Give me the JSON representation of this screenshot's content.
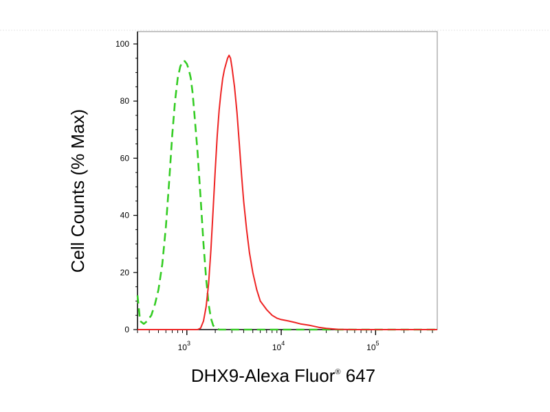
{
  "chart_data": {
    "type": "line",
    "xlabel": "DHX9-Alexa Fluor",
    "xlabel_sup": "®",
    "xlabel_suffix": " 647",
    "ylabel": "Cell Counts (% Max)",
    "x_scale": "log",
    "xlim": [
      300,
      450000
    ],
    "ylim": [
      0,
      100
    ],
    "y_ticks": [
      {
        "value": 0,
        "label": "0"
      },
      {
        "value": 20,
        "label": "20"
      },
      {
        "value": 40,
        "label": "40"
      },
      {
        "value": 60,
        "label": "60"
      },
      {
        "value": 80,
        "label": "80"
      },
      {
        "value": 100,
        "label": "100"
      }
    ],
    "x_major_ticks": [
      {
        "value": 1000,
        "base": "10",
        "exp": "3"
      },
      {
        "value": 10000,
        "base": "10",
        "exp": "4"
      },
      {
        "value": 100000,
        "base": "10",
        "exp": "5"
      }
    ],
    "grid": false,
    "series": [
      {
        "color": "#33cc22",
        "dash": "dashed",
        "points": [
          [
            300,
            12
          ],
          [
            320,
            3
          ],
          [
            350,
            2
          ],
          [
            380,
            3
          ],
          [
            420,
            5
          ],
          [
            460,
            9
          ],
          [
            500,
            14
          ],
          [
            550,
            23
          ],
          [
            600,
            36
          ],
          [
            650,
            52
          ],
          [
            700,
            68
          ],
          [
            750,
            80
          ],
          [
            800,
            88
          ],
          [
            850,
            92
          ],
          [
            900,
            94
          ],
          [
            950,
            94
          ],
          [
            1000,
            93
          ],
          [
            1050,
            91
          ],
          [
            1100,
            88
          ],
          [
            1150,
            83
          ],
          [
            1200,
            76
          ],
          [
            1300,
            62
          ],
          [
            1400,
            46
          ],
          [
            1500,
            30
          ],
          [
            1600,
            18
          ],
          [
            1700,
            9
          ],
          [
            1800,
            4
          ],
          [
            1900,
            1.5
          ],
          [
            2000,
            0.5
          ],
          [
            2200,
            0
          ],
          [
            450000,
            0
          ]
        ]
      },
      {
        "color": "#ee2222",
        "dash": "solid",
        "points": [
          [
            300,
            0
          ],
          [
            1300,
            0
          ],
          [
            1400,
            0.5
          ],
          [
            1500,
            3
          ],
          [
            1600,
            8
          ],
          [
            1700,
            16
          ],
          [
            1800,
            28
          ],
          [
            1900,
            42
          ],
          [
            2000,
            56
          ],
          [
            2100,
            68
          ],
          [
            2200,
            77
          ],
          [
            2300,
            83
          ],
          [
            2400,
            88
          ],
          [
            2500,
            91
          ],
          [
            2600,
            93
          ],
          [
            2700,
            95
          ],
          [
            2800,
            96
          ],
          [
            2900,
            95
          ],
          [
            3000,
            92
          ],
          [
            3200,
            85
          ],
          [
            3400,
            76
          ],
          [
            3600,
            65
          ],
          [
            3800,
            54
          ],
          [
            4000,
            45
          ],
          [
            4300,
            35
          ],
          [
            4600,
            27
          ],
          [
            5000,
            20
          ],
          [
            5500,
            14
          ],
          [
            6000,
            10
          ],
          [
            7000,
            7
          ],
          [
            8000,
            5
          ],
          [
            9000,
            4
          ],
          [
            10000,
            3.5
          ],
          [
            12000,
            3
          ],
          [
            14000,
            2.5
          ],
          [
            16000,
            2
          ],
          [
            20000,
            1.5
          ],
          [
            25000,
            0.8
          ],
          [
            30000,
            0.4
          ],
          [
            40000,
            0.1
          ],
          [
            60000,
            0
          ],
          [
            450000,
            0
          ]
        ]
      }
    ]
  }
}
